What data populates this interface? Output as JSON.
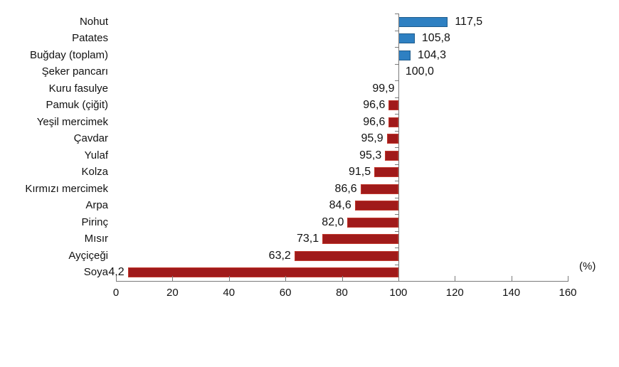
{
  "unit_label": "(%)",
  "chart_data": {
    "type": "bar",
    "orientation": "horizontal",
    "baseline": 100,
    "title": "",
    "xlabel": "(%)",
    "ylabel": "",
    "xlim": [
      0,
      160
    ],
    "x_ticks": [
      0,
      20,
      40,
      60,
      80,
      100,
      120,
      140,
      160
    ],
    "x_tick_labels": [
      "0",
      "20",
      "40",
      "60",
      "80",
      "100",
      "120",
      "140",
      "160"
    ],
    "grid": false,
    "legend": null,
    "categories": [
      "Nohut",
      "Patates",
      "Buğday (toplam)",
      "Şeker pancarı",
      "Kuru fasulye",
      "Pamuk (çiğit)",
      "Yeşil mercimek",
      "Çavdar",
      "Yulaf",
      "Kolza",
      "Kırmızı mercimek",
      "Arpa",
      "Pirinç",
      "Mısır",
      "Ayçiçeği",
      "Soya"
    ],
    "values": [
      117.5,
      105.8,
      104.3,
      100.0,
      99.9,
      96.6,
      96.6,
      95.9,
      95.3,
      91.5,
      86.6,
      84.6,
      82.0,
      73.1,
      63.2,
      4.2
    ],
    "value_labels": [
      "117,5",
      "105,8",
      "104,3",
      "100,0",
      "99,9",
      "96,6",
      "96,6",
      "95,9",
      "95,3",
      "91,5",
      "86,6",
      "84,6",
      "82,0",
      "73,1",
      "63,2",
      "4,2"
    ],
    "colors": {
      "above_baseline_fill": "#2E80C2",
      "above_baseline_border": "#1E5C8C",
      "below_baseline_fill": "#A01A1A",
      "below_baseline_border": "#C13A2F",
      "axis": "#7a7a7a",
      "text": "#111111",
      "background": "#ffffff"
    }
  }
}
